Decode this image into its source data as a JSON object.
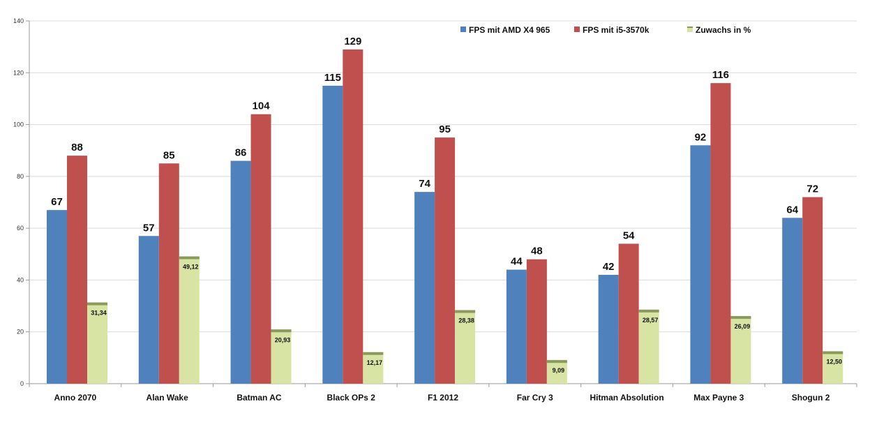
{
  "chart_data": {
    "type": "bar",
    "title": "",
    "xlabel": "",
    "ylabel": "",
    "ylim": [
      0,
      140
    ],
    "yticks": [
      0,
      20,
      40,
      60,
      80,
      100,
      120,
      140
    ],
    "grid": true,
    "legend_position": "top-right",
    "categories": [
      "Anno 2070",
      "Alan Wake",
      "Batman AC",
      "Black OPs 2",
      "F1 2012",
      "Far Cry 3",
      "Hitman Absolution",
      "Max Payne 3",
      "Shogun 2"
    ],
    "series": [
      {
        "name": "FPS mit AMD X4 965",
        "color": "#4f81bd",
        "values": [
          67,
          57,
          86,
          115,
          74,
          44,
          42,
          92,
          64
        ],
        "labels": [
          "67",
          "57",
          "86",
          "115",
          "74",
          "44",
          "42",
          "92",
          "64"
        ]
      },
      {
        "name": "FPS mit i5-3570k",
        "color": "#c0504d",
        "values": [
          88,
          85,
          104,
          129,
          95,
          48,
          54,
          116,
          72
        ],
        "labels": [
          "88",
          "85",
          "104",
          "129",
          "95",
          "48",
          "54",
          "116",
          "72"
        ]
      },
      {
        "name": "Zuwachs in %",
        "color": "#d7e4a3",
        "top_color": "#8a9a5b",
        "values": [
          31.34,
          49.12,
          20.93,
          12.17,
          28.38,
          9.09,
          28.57,
          26.09,
          12.5
        ],
        "labels": [
          "31,34",
          "49,12",
          "20,93",
          "12,17",
          "28,38",
          "9,09",
          "28,57",
          "26,09",
          "12,50"
        ]
      }
    ]
  }
}
